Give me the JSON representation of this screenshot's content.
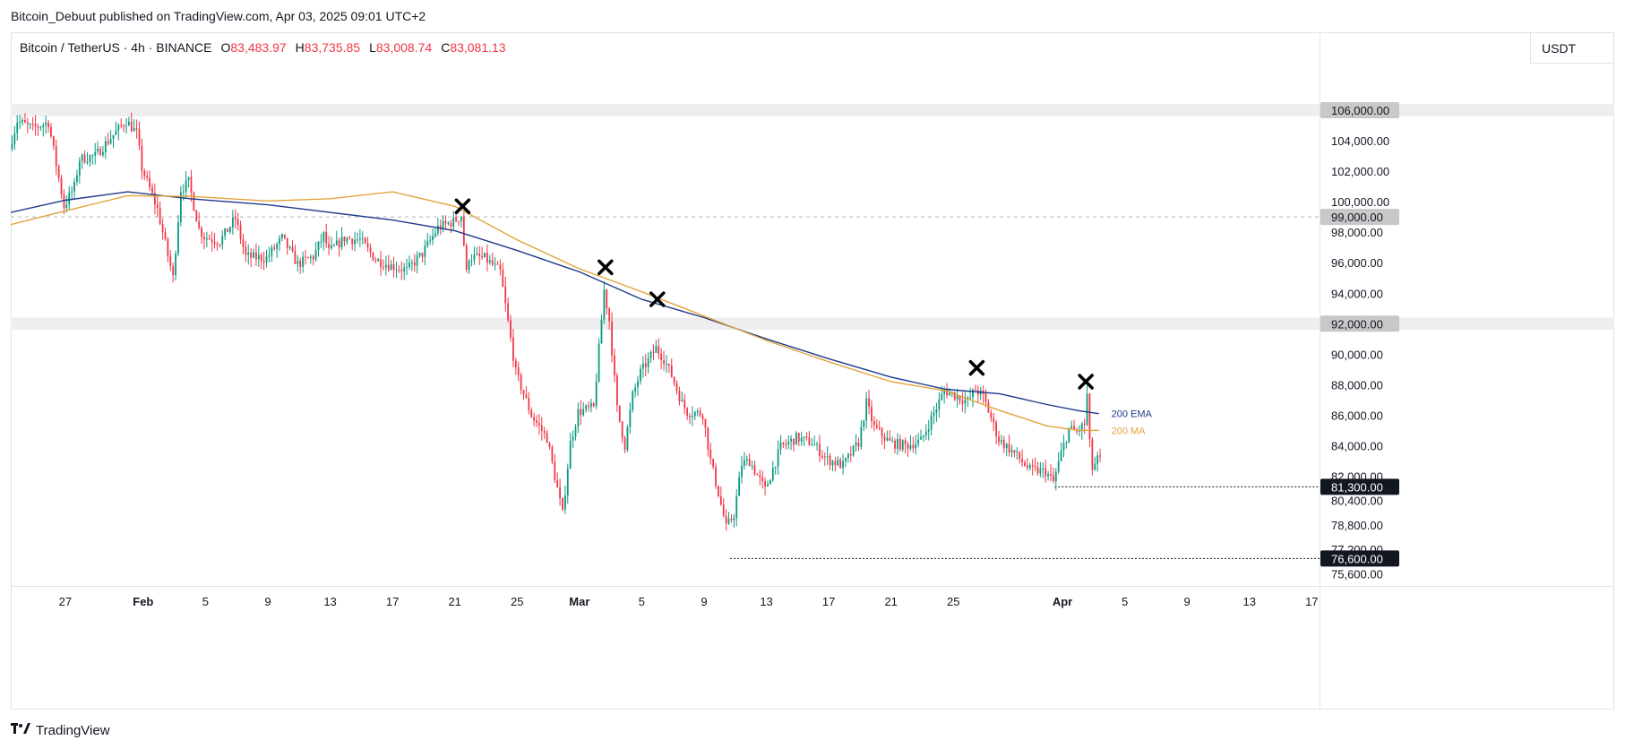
{
  "caption": "Bitcoin_Debuut published on TradingView.com, Apr 03, 2025 09:01 UTC+2",
  "legend": {
    "symbol": "Bitcoin / TetherUS · 4h · BINANCE",
    "open_label": "O",
    "open": "83,483.97",
    "high_label": "H",
    "high": "83,735.85",
    "low_label": "L",
    "low": "83,008.74",
    "close_label": "C",
    "close": "83,081.13"
  },
  "unit": "USDT",
  "footer": {
    "brand": "TradingView",
    "logo_icon": "tradingview-logo-icon"
  },
  "colors": {
    "up": "#089981",
    "down": "#f23645",
    "ema": "#1e3a8a",
    "ma": "#e3a33b",
    "zone": "#eeeeee",
    "grid": "#e0e3eb",
    "text": "#131722"
  },
  "chart_data": {
    "type": "candlestick",
    "timeframe": "4h",
    "x_tick_labels": [
      {
        "label": "27",
        "date": "2025-01-27"
      },
      {
        "label": "Feb",
        "date": "2025-02-01"
      },
      {
        "label": "5",
        "date": "2025-02-05"
      },
      {
        "label": "9",
        "date": "2025-02-09"
      },
      {
        "label": "13",
        "date": "2025-02-13"
      },
      {
        "label": "17",
        "date": "2025-02-17"
      },
      {
        "label": "21",
        "date": "2025-02-21"
      },
      {
        "label": "25",
        "date": "2025-02-25"
      },
      {
        "label": "Mar",
        "date": "2025-03-01"
      },
      {
        "label": "5",
        "date": "2025-03-05"
      },
      {
        "label": "9",
        "date": "2025-03-09"
      },
      {
        "label": "13",
        "date": "2025-03-13"
      },
      {
        "label": "17",
        "date": "2025-03-17"
      },
      {
        "label": "21",
        "date": "2025-03-21"
      },
      {
        "label": "25",
        "date": "2025-03-25"
      },
      {
        "label": "Apr",
        "date": "2025-04-01"
      },
      {
        "label": "5",
        "date": "2025-04-05"
      },
      {
        "label": "9",
        "date": "2025-04-09"
      },
      {
        "label": "13",
        "date": "2025-04-13"
      },
      {
        "label": "17",
        "date": "2025-04-17"
      }
    ],
    "x_range": [
      "2025-01-23T12:00",
      "2025-04-17T12:00"
    ],
    "y_range": [
      74800,
      109000
    ],
    "y_tick_labels": [
      "104,000.00",
      "102,000.00",
      "100,000.00",
      "98,000.00",
      "96,000.00",
      "94,000.00",
      "90,000.00",
      "88,000.00",
      "86,000.00",
      "84,000.00",
      "82,000.00",
      "80,400.00",
      "78,800.00",
      "77,200.00",
      "75,600.00"
    ],
    "y_ticks": [
      104000,
      102000,
      100000,
      98000,
      96000,
      94000,
      90000,
      88000,
      86000,
      84000,
      82000,
      80400,
      78800,
      77200,
      75600
    ],
    "price_markers": [
      {
        "label": "106,000.00",
        "value": 106000,
        "style": "gray"
      },
      {
        "label": "99,000.00",
        "value": 99000,
        "style": "gray"
      },
      {
        "label": "92,000.00",
        "value": 92000,
        "style": "gray"
      },
      {
        "label": "81,300.00",
        "value": 81300,
        "style": "dark"
      },
      {
        "label": "76,600.00",
        "value": 76600,
        "style": "dark"
      }
    ],
    "zones": [
      {
        "from": 105600,
        "to": 106400
      },
      {
        "from": 91600,
        "to": 92400
      }
    ],
    "dashed_level": 99000,
    "dotted_levels": [
      {
        "value": 81300,
        "from": "2025-03-31T12:00"
      },
      {
        "value": 76600,
        "from": "2025-03-10T16:00"
      }
    ],
    "series": [
      {
        "name": "200 EMA",
        "points": [
          [
            "2025-01-23T12:00",
            99300
          ],
          [
            "2025-01-27",
            100100
          ],
          [
            "2025-01-31",
            100650
          ],
          [
            "2025-02-04",
            100200
          ],
          [
            "2025-02-09",
            99800
          ],
          [
            "2025-02-13",
            99300
          ],
          [
            "2025-02-17",
            98800
          ],
          [
            "2025-02-21",
            98100
          ],
          [
            "2025-02-25",
            96800
          ],
          [
            "2025-03-01",
            95400
          ],
          [
            "2025-03-05",
            93600
          ],
          [
            "2025-03-09",
            92400
          ],
          [
            "2025-03-13",
            91000
          ],
          [
            "2025-03-17",
            89700
          ],
          [
            "2025-03-21",
            88500
          ],
          [
            "2025-03-24T12:00",
            87700
          ],
          [
            "2025-03-28",
            87400
          ],
          [
            "2025-03-31",
            86700
          ],
          [
            "2025-04-02",
            86300
          ],
          [
            "2025-04-03T08:00",
            86100
          ]
        ]
      },
      {
        "name": "200 MA",
        "points": [
          [
            "2025-01-23T12:00",
            98500
          ],
          [
            "2025-01-27",
            99400
          ],
          [
            "2025-01-31",
            100400
          ],
          [
            "2025-02-04",
            100350
          ],
          [
            "2025-02-09",
            100050
          ],
          [
            "2025-02-13",
            100200
          ],
          [
            "2025-02-17",
            100650
          ],
          [
            "2025-02-21",
            99700
          ],
          [
            "2025-02-25",
            97500
          ],
          [
            "2025-03-01",
            95600
          ],
          [
            "2025-03-05",
            94100
          ],
          [
            "2025-03-09",
            92500
          ],
          [
            "2025-03-13",
            90900
          ],
          [
            "2025-03-17",
            89500
          ],
          [
            "2025-03-21",
            88200
          ],
          [
            "2025-03-24T12:00",
            87600
          ],
          [
            "2025-03-28",
            86300
          ],
          [
            "2025-03-31",
            85300
          ],
          [
            "2025-04-02",
            85000
          ],
          [
            "2025-04-03T08:00",
            85000
          ]
        ]
      }
    ],
    "line_labels": [
      {
        "text": "200 EMA",
        "series": "200 EMA"
      },
      {
        "text": "200 MA",
        "series": "200 MA"
      }
    ],
    "markers": [
      {
        "date": "2025-02-21T12:00",
        "value": 99700
      },
      {
        "date": "2025-03-02T16:00",
        "value": 95700
      },
      {
        "date": "2025-03-06T00:00",
        "value": 93600
      },
      {
        "date": "2025-03-26T12:00",
        "value": 89100
      },
      {
        "date": "2025-04-02T12:00",
        "value": 88200
      }
    ],
    "price_path": [
      [
        "2025-01-23T12:00",
        103500
      ],
      [
        "2025-01-24",
        105300
      ],
      [
        "2025-01-25",
        104800
      ],
      [
        "2025-01-26",
        105200
      ],
      [
        "2025-01-27",
        99700
      ],
      [
        "2025-01-27T16:00",
        101000
      ],
      [
        "2025-01-28",
        102800
      ],
      [
        "2025-01-29",
        103000
      ],
      [
        "2025-01-30",
        104200
      ],
      [
        "2025-01-31",
        105300
      ],
      [
        "2025-01-31T16:00",
        104500
      ],
      [
        "2025-02-01",
        102200
      ],
      [
        "2025-02-02",
        99500
      ],
      [
        "2025-02-03",
        95000
      ],
      [
        "2025-02-03T12:00",
        100800
      ],
      [
        "2025-02-04",
        101300
      ],
      [
        "2025-02-04T16:00",
        98200
      ],
      [
        "2025-02-05",
        97700
      ],
      [
        "2025-02-06",
        97400
      ],
      [
        "2025-02-07",
        98900
      ],
      [
        "2025-02-07T16:00",
        96400
      ],
      [
        "2025-02-09",
        96300
      ],
      [
        "2025-02-10",
        97600
      ],
      [
        "2025-02-11",
        95900
      ],
      [
        "2025-02-12",
        96400
      ],
      [
        "2025-02-12T16:00",
        97800
      ],
      [
        "2025-02-13",
        96700
      ],
      [
        "2025-02-14",
        97600
      ],
      [
        "2025-02-15",
        97500
      ],
      [
        "2025-02-16",
        96200
      ],
      [
        "2025-02-17",
        95800
      ],
      [
        "2025-02-18",
        95500
      ],
      [
        "2025-02-19",
        96600
      ],
      [
        "2025-02-20",
        98300
      ],
      [
        "2025-02-21",
        98700
      ],
      [
        "2025-02-21T12:00",
        99100
      ],
      [
        "2025-02-21T20:00",
        95300
      ],
      [
        "2025-02-22",
        96400
      ],
      [
        "2025-02-23",
        96300
      ],
      [
        "2025-02-24",
        95400
      ],
      [
        "2025-02-25",
        88800
      ],
      [
        "2025-02-26",
        86000
      ],
      [
        "2025-02-27",
        84500
      ],
      [
        "2025-02-28",
        79500
      ],
      [
        "2025-02-28T12:00",
        84200
      ],
      [
        "2025-03-01",
        86200
      ],
      [
        "2025-03-02",
        86500
      ],
      [
        "2025-03-02T16:00",
        94200
      ],
      [
        "2025-03-03",
        92200
      ],
      [
        "2025-03-03T12:00",
        86400
      ],
      [
        "2025-03-04",
        84000
      ],
      [
        "2025-03-04T12:00",
        87300
      ],
      [
        "2025-03-05",
        88800
      ],
      [
        "2025-03-06",
        90400
      ],
      [
        "2025-03-06T12:00",
        89700
      ],
      [
        "2025-03-07",
        88600
      ],
      [
        "2025-03-07T16:00",
        86800
      ],
      [
        "2025-03-08",
        86200
      ],
      [
        "2025-03-09",
        86100
      ],
      [
        "2025-03-09T12:00",
        83000
      ],
      [
        "2025-03-10",
        80900
      ],
      [
        "2025-03-10T12:00",
        78600
      ],
      [
        "2025-03-11",
        79500
      ],
      [
        "2025-03-11T12:00",
        82800
      ],
      [
        "2025-03-12",
        83000
      ],
      [
        "2025-03-13",
        81100
      ],
      [
        "2025-03-14",
        83900
      ],
      [
        "2025-03-15",
        84500
      ],
      [
        "2025-03-16",
        84200
      ],
      [
        "2025-03-17",
        83100
      ],
      [
        "2025-03-18",
        82700
      ],
      [
        "2025-03-19",
        84200
      ],
      [
        "2025-03-19T12:00",
        86800
      ],
      [
        "2025-03-20",
        85200
      ],
      [
        "2025-03-21",
        84200
      ],
      [
        "2025-03-22",
        84000
      ],
      [
        "2025-03-23",
        84300
      ],
      [
        "2025-03-24",
        86500
      ],
      [
        "2025-03-24T12:00",
        87600
      ],
      [
        "2025-03-25",
        87400
      ],
      [
        "2025-03-26",
        86900
      ],
      [
        "2025-03-26T12:00",
        87700
      ],
      [
        "2025-03-27",
        87200
      ],
      [
        "2025-03-28",
        84400
      ],
      [
        "2025-03-29",
        83500
      ],
      [
        "2025-03-30",
        82400
      ],
      [
        "2025-03-31",
        82300
      ],
      [
        "2025-03-31T12:00",
        81600
      ],
      [
        "2025-04-01",
        83500
      ],
      [
        "2025-04-01T12:00",
        85100
      ],
      [
        "2025-04-02",
        84900
      ],
      [
        "2025-04-02T12:00",
        85400
      ],
      [
        "2025-04-02T16:00",
        87300
      ],
      [
        "2025-04-02T20:00",
        84100
      ],
      [
        "2025-04-03",
        82500
      ],
      [
        "2025-04-03T08:00",
        83081
      ]
    ]
  }
}
